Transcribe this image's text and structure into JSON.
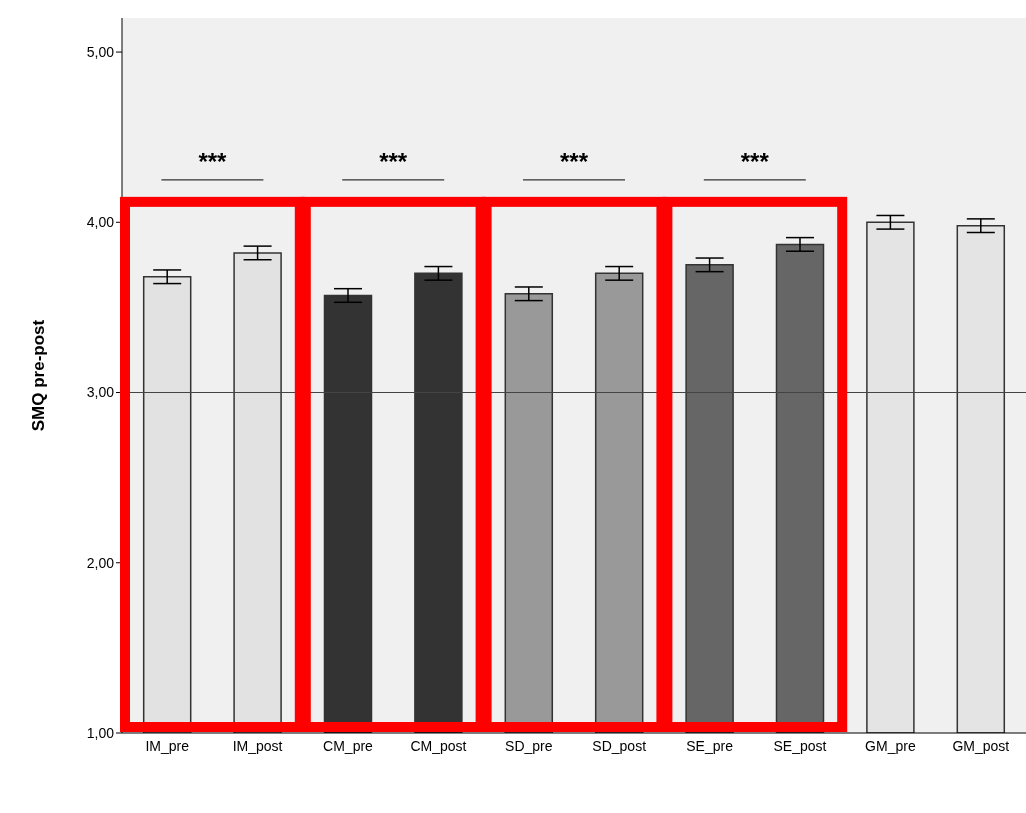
{
  "chart_data": {
    "type": "bar",
    "ylabel": "SMQ pre-post",
    "categories": [
      "IM_pre",
      "IM_post",
      "CM_pre",
      "CM_post",
      "SD_pre",
      "SD_post",
      "SE_pre",
      "SE_post",
      "GM_pre",
      "GM_post"
    ],
    "values": [
      3.68,
      3.82,
      3.57,
      3.7,
      3.58,
      3.7,
      3.75,
      3.87,
      4.0,
      3.98
    ],
    "errors": [
      0.04,
      0.04,
      0.04,
      0.04,
      0.04,
      0.04,
      0.04,
      0.04,
      0.04,
      0.04
    ],
    "colors": [
      "#e2e2e2",
      "#e2e2e2",
      "#333333",
      "#333333",
      "#999999",
      "#999999",
      "#666666",
      "#666666",
      "#e4e4e4",
      "#e4e4e4"
    ],
    "ylim": [
      1,
      5.2
    ],
    "yticks": [
      {
        "value": 1,
        "label": "1,00"
      },
      {
        "value": 2,
        "label": "2,00"
      },
      {
        "value": 3,
        "label": "3,00"
      },
      {
        "value": 4,
        "label": "4,00"
      },
      {
        "value": 5,
        "label": "5,00"
      }
    ],
    "ref_lines": [
      {
        "axis": "y",
        "value": 3,
        "color": "#444444"
      }
    ],
    "annotations": [
      "***",
      "***",
      "***",
      "***"
    ]
  }
}
